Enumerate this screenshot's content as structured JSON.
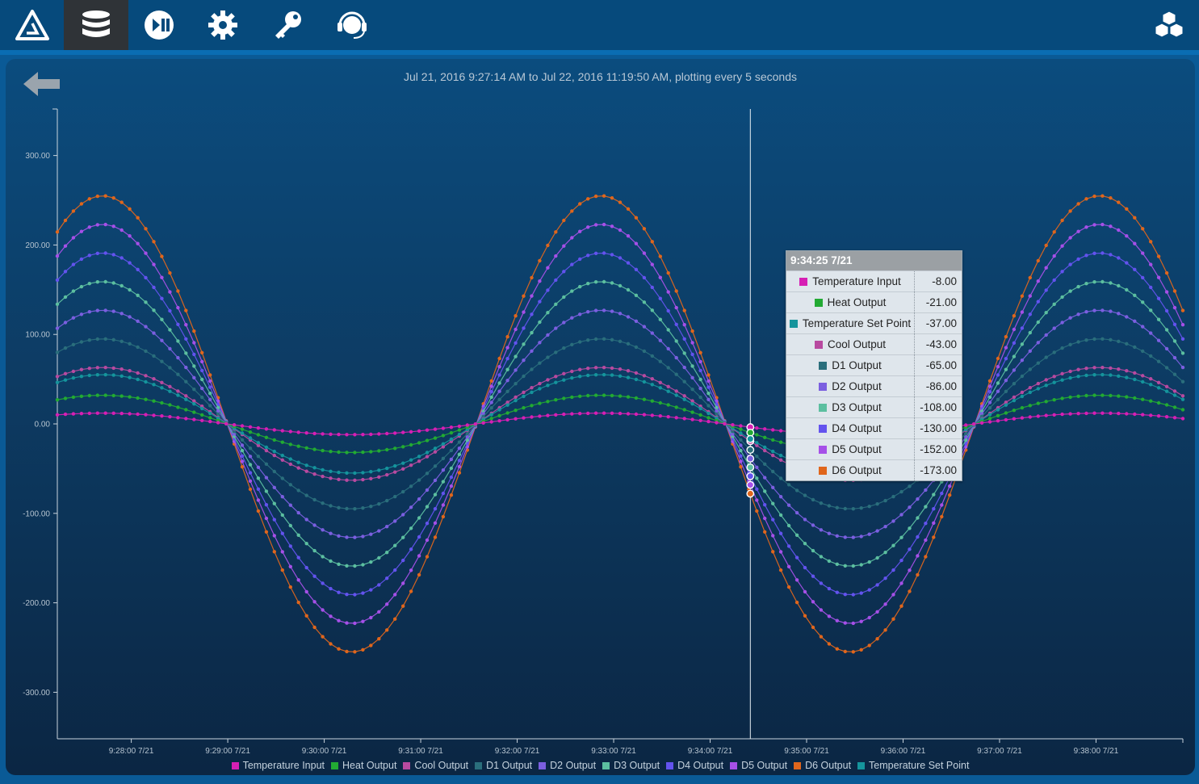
{
  "nav": {
    "items": [
      {
        "name": "logo-icon",
        "active": false
      },
      {
        "name": "database-icon",
        "active": true
      },
      {
        "name": "play-pause-icon",
        "active": false
      },
      {
        "name": "gear-icon",
        "active": false
      },
      {
        "name": "key-icon",
        "active": false
      },
      {
        "name": "headset-icon",
        "active": false
      }
    ],
    "right_icon": "cubes-icon"
  },
  "range_text": "Jul 21, 2016 9:27:14 AM to Jul 22, 2016 11:19:50 AM, plotting every 5 seconds",
  "tooltip": {
    "time": "9:34:25 7/21",
    "rows": [
      {
        "name": "Temperature Input",
        "value": "-8.00",
        "color": "#d61fb4"
      },
      {
        "name": "Heat Output",
        "value": "-21.00",
        "color": "#22aa33"
      },
      {
        "name": "Temperature Set Point",
        "value": "-37.00",
        "color": "#15949c"
      },
      {
        "name": "Cool Output",
        "value": "-43.00",
        "color": "#b84aa0"
      },
      {
        "name": "D1 Output",
        "value": "-65.00",
        "color": "#2a6e7c"
      },
      {
        "name": "D2 Output",
        "value": "-86.00",
        "color": "#7b5fe0"
      },
      {
        "name": "D3 Output",
        "value": "-108.00",
        "color": "#5cbfa0"
      },
      {
        "name": "D4 Output",
        "value": "-130.00",
        "color": "#6353ee"
      },
      {
        "name": "D5 Output",
        "value": "-152.00",
        "color": "#a650e8"
      },
      {
        "name": "D6 Output",
        "value": "-173.00",
        "color": "#e0661c"
      }
    ]
  },
  "chart_data": {
    "type": "line",
    "x_start": "9:27:14 7/21",
    "x_end": "9:38:54 7/21",
    "sample_interval_seconds": 5,
    "function": "amplitude * sin(2*pi*(t - 9:27:14)/310s + 1.0)",
    "crosshair_time": "9:34:25 7/21",
    "yticks": [
      "300.00",
      "200.00",
      "100.00",
      "0.00",
      "-100.00",
      "-200.00",
      "-300.00"
    ],
    "ylim": [
      -352,
      352
    ],
    "xticks": [
      "9:28:00 7/21",
      "9:29:00 7/21",
      "9:30:00 7/21",
      "9:31:00 7/21",
      "9:32:00 7/21",
      "9:33:00 7/21",
      "9:34:00 7/21",
      "9:35:00 7/21",
      "9:36:00 7/21",
      "9:37:00 7/21",
      "9:38:00 7/21"
    ],
    "series": [
      {
        "name": "Temperature Input",
        "amplitude": 12,
        "color": "#d61fb4"
      },
      {
        "name": "Heat Output",
        "amplitude": 32,
        "color": "#22aa33"
      },
      {
        "name": "Cool Output",
        "amplitude": 63,
        "color": "#b84aa0"
      },
      {
        "name": "D1 Output",
        "amplitude": 95,
        "color": "#2a6e7c"
      },
      {
        "name": "D2 Output",
        "amplitude": 127,
        "color": "#7b5fe0"
      },
      {
        "name": "D3 Output",
        "amplitude": 159,
        "color": "#5cbfa0"
      },
      {
        "name": "D4 Output",
        "amplitude": 191,
        "color": "#6353ee"
      },
      {
        "name": "D5 Output",
        "amplitude": 223,
        "color": "#a650e8"
      },
      {
        "name": "D6 Output",
        "amplitude": 255,
        "color": "#e0661c"
      },
      {
        "name": "Temperature Set Point",
        "amplitude": 55,
        "color": "#15949c"
      }
    ]
  }
}
